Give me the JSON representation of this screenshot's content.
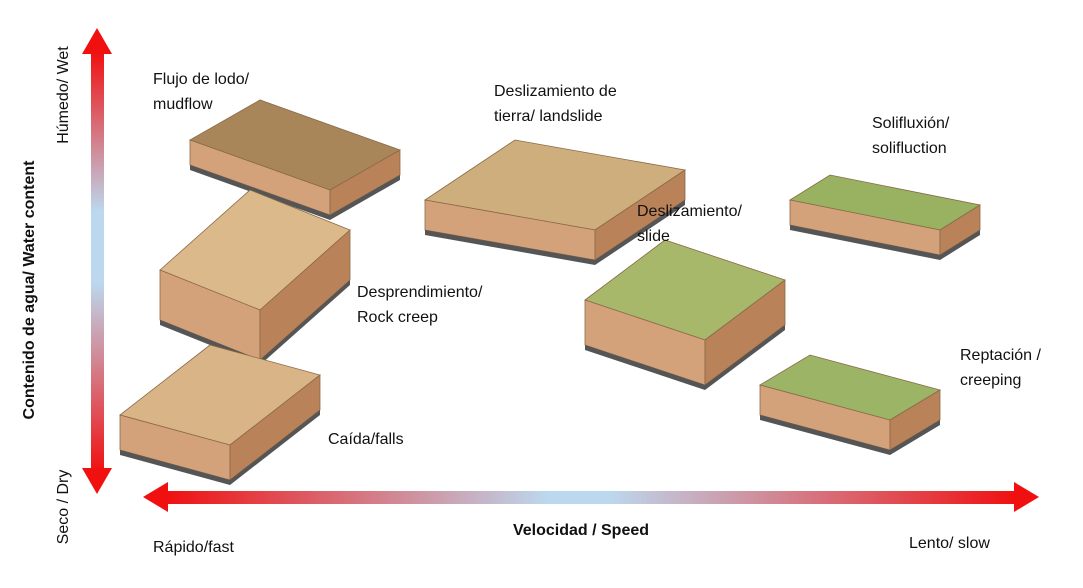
{
  "y_axis": {
    "label": "Contenido de agua/ Water content",
    "top": "Húmedo/ Wet",
    "bottom": "Seco / Dry"
  },
  "x_axis": {
    "label": "Velocidad / Speed",
    "left": "Rápido/fast",
    "right": "Lento/ slow"
  },
  "nodes": [
    {
      "lines": [
        "Flujo de lodo/",
        "mudflow"
      ]
    },
    {
      "lines": [
        "Deslizamiento de",
        "tierra/ landslide"
      ]
    },
    {
      "lines": [
        "Solifluxión/",
        "solifluction"
      ]
    },
    {
      "lines": [
        "Deslizamiento/",
        "slide"
      ]
    },
    {
      "lines": [
        "Desprendimiento/",
        "Rock creep"
      ]
    },
    {
      "lines": [
        "Reptación /",
        "creeping"
      ]
    },
    {
      "lines": [
        "Caída/falls"
      ]
    }
  ]
}
